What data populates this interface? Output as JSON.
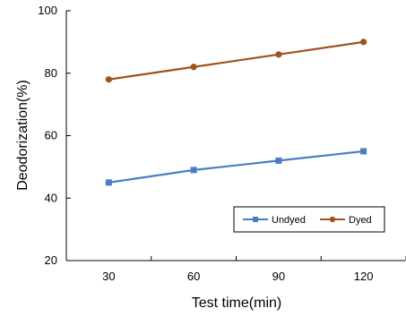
{
  "chart_data": {
    "type": "line",
    "title": "",
    "xlabel": "Test time(min)",
    "ylabel": "Deodorization(%)",
    "x": [
      30,
      60,
      90,
      120
    ],
    "x_tick_labels": [
      "30",
      "60",
      "90",
      "120"
    ],
    "xlim": [
      15,
      135
    ],
    "ylim": [
      20,
      100
    ],
    "y_tick_labels": [
      "20",
      "40",
      "60",
      "80",
      "100"
    ],
    "grid": false,
    "legend_position": "bottom-right",
    "series": [
      {
        "name": "Undyed",
        "marker": "square",
        "color": "#4A7EC2",
        "values": [
          45,
          49,
          52,
          55
        ]
      },
      {
        "name": "Dyed",
        "marker": "circle",
        "color": "#A0521B",
        "values": [
          78,
          82,
          86,
          90
        ]
      }
    ]
  }
}
